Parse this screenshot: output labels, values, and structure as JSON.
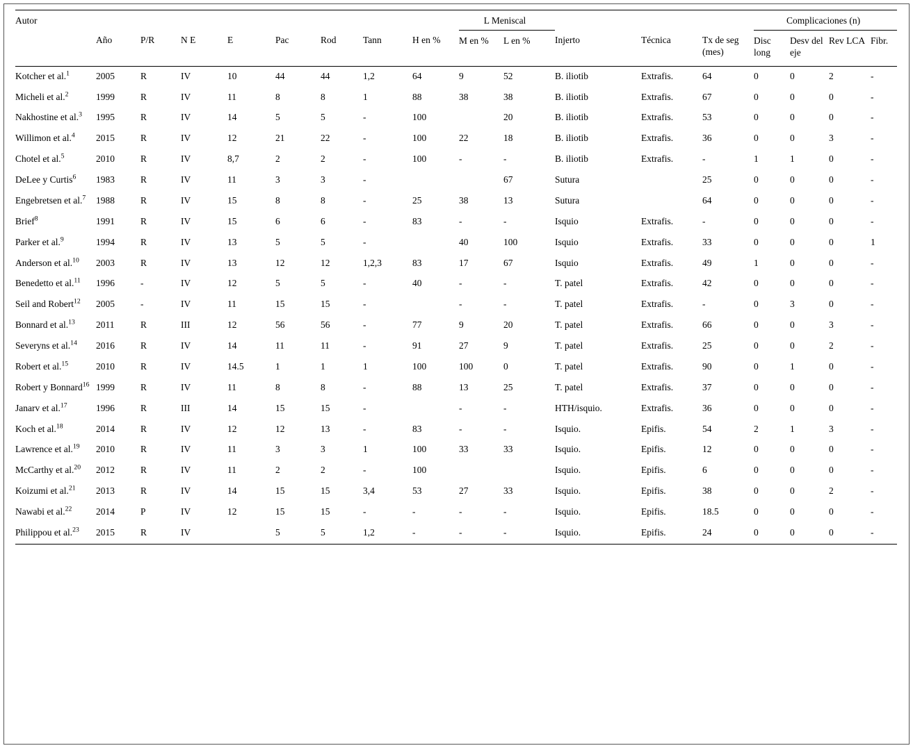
{
  "table": {
    "header": {
      "autor": "Autor",
      "l_meniscal": "L Meniscal",
      "complicaciones": "Complicaciones (n)",
      "cols": [
        "Año",
        "P/R",
        "N E",
        "E",
        "Pac",
        "Rod",
        "Tann",
        "H en %",
        "M en %",
        "L en %",
        "Injerto",
        "Técnica",
        "Tx de seg (mes)",
        "Disc long",
        "Desv del eje",
        "Rev LCA",
        "Fibr."
      ]
    },
    "rows": [
      {
        "autor": "Kotcher et al.",
        "ref": "1",
        "cells": [
          "2005",
          "R",
          "IV",
          "10",
          "44",
          "44",
          "1,2",
          "64",
          "9",
          "52",
          "B. iliotib",
          "Extrafis.",
          "64",
          "0",
          "0",
          "2",
          "-"
        ]
      },
      {
        "autor": "Micheli et al.",
        "ref": "2",
        "cells": [
          "1999",
          "R",
          "IV",
          "11",
          "8",
          "8",
          "1",
          "88",
          "38",
          "38",
          "B. iliotib",
          "Extrafis.",
          "67",
          "0",
          "0",
          "0",
          "-"
        ]
      },
      {
        "autor": "Nakhostine et al.",
        "ref": "3",
        "cells": [
          "1995",
          "R",
          "IV",
          "14",
          "5",
          "5",
          "-",
          "100",
          "",
          "20",
          "B. iliotib",
          "Extrafis.",
          "53",
          "0",
          "0",
          "0",
          "-"
        ]
      },
      {
        "autor": "Willimon et al.",
        "ref": "4",
        "cells": [
          "2015",
          "R",
          "IV",
          "12",
          "21",
          "22",
          "-",
          "100",
          "22",
          "18",
          "B. iliotib",
          "Extrafis.",
          "36",
          "0",
          "0",
          "3",
          "-"
        ]
      },
      {
        "autor": "Chotel et al.",
        "ref": "5",
        "cells": [
          "2010",
          "R",
          "IV",
          "8,7",
          "2",
          "2",
          "-",
          "100",
          "-",
          "-",
          "B. iliotib",
          "Extrafis.",
          "-",
          "1",
          "1",
          "0",
          "-"
        ]
      },
      {
        "autor": "DeLee y Curtis",
        "ref": "6",
        "cells": [
          "1983",
          "R",
          "IV",
          "11",
          "3",
          "3",
          "-",
          "",
          "",
          "67",
          "Sutura",
          "",
          "25",
          "0",
          "0",
          "0",
          "-"
        ]
      },
      {
        "autor": "Engebretsen et al.",
        "ref": "7",
        "cells": [
          "1988",
          "R",
          "IV",
          "15",
          "8",
          "8",
          "-",
          "25",
          "38",
          "13",
          "Sutura",
          "",
          "64",
          "0",
          "0",
          "0",
          "-"
        ]
      },
      {
        "autor": "Brief",
        "ref": "8",
        "cells": [
          "1991",
          "R",
          "IV",
          "15",
          "6",
          "6",
          "-",
          "83",
          "-",
          "-",
          "Isquio",
          "Extrafis.",
          "-",
          "0",
          "0",
          "0",
          "-"
        ]
      },
      {
        "autor": "Parker et al.",
        "ref": "9",
        "cells": [
          "1994",
          "R",
          "IV",
          "13",
          "5",
          "5",
          "-",
          "",
          "40",
          "100",
          "Isquio",
          "Extrafis.",
          "33",
          "0",
          "0",
          "0",
          "1"
        ]
      },
      {
        "autor": "Anderson et al.",
        "ref": "10",
        "cells": [
          "2003",
          "R",
          "IV",
          "13",
          "12",
          "12",
          "1,2,3",
          "83",
          "17",
          "67",
          "Isquio",
          "Extrafis.",
          "49",
          "1",
          "0",
          "0",
          "-"
        ]
      },
      {
        "autor": "Benedetto et al.",
        "ref": "11",
        "cells": [
          "1996",
          "-",
          "IV",
          "12",
          "5",
          "5",
          "-",
          "40",
          "-",
          "-",
          "T. patel",
          "Extrafis.",
          "42",
          "0",
          "0",
          "0",
          "-"
        ]
      },
      {
        "autor": "Seil and Robert",
        "ref": "12",
        "cells": [
          "2005",
          "-",
          "IV",
          "11",
          "15",
          "15",
          "-",
          "",
          "-",
          "-",
          "T. patel",
          "Extrafis.",
          "-",
          "0",
          "3",
          "0",
          "-"
        ]
      },
      {
        "autor": "Bonnard et al.",
        "ref": "13",
        "cells": [
          "2011",
          "R",
          "III",
          "12",
          "56",
          "56",
          "-",
          "77",
          "9",
          "20",
          "T. patel",
          "Extrafis.",
          "66",
          "0",
          "0",
          "3",
          "-"
        ]
      },
      {
        "autor": "Severyns et al.",
        "ref": "14",
        "cells": [
          "2016",
          "R",
          "IV",
          "14",
          "11",
          "11",
          "-",
          "91",
          "27",
          "9",
          "T. patel",
          "Extrafis.",
          "25",
          "0",
          "0",
          "2",
          "-"
        ]
      },
      {
        "autor": "Robert et al.",
        "ref": "15",
        "cells": [
          "2010",
          "R",
          "IV",
          "14.5",
          "1",
          "1",
          "1",
          "100",
          "100",
          "0",
          "T. patel",
          "Extrafis.",
          "90",
          "0",
          "1",
          "0",
          "-"
        ]
      },
      {
        "autor": "Robert y Bonnard",
        "ref": "16",
        "cells": [
          "1999",
          "R",
          "IV",
          "11",
          "8",
          "8",
          "-",
          "88",
          "13",
          "25",
          "T. patel",
          "Extrafis.",
          "37",
          "0",
          "0",
          "0",
          "-"
        ]
      },
      {
        "autor": "Janarv et al.",
        "ref": "17",
        "cells": [
          "1996",
          "R",
          "III",
          "14",
          "15",
          "15",
          "-",
          "",
          "-",
          "-",
          "HTH/isquio.",
          "Extrafis.",
          "36",
          "0",
          "0",
          "0",
          "-"
        ]
      },
      {
        "autor": "Koch et al.",
        "ref": "18",
        "cells": [
          "2014",
          "R",
          "IV",
          "12",
          "12",
          "13",
          "-",
          "83",
          "-",
          "-",
          "Isquio.",
          "Epifis.",
          "54",
          "2",
          "1",
          "3",
          "-"
        ]
      },
      {
        "autor": "Lawrence et al.",
        "ref": "19",
        "cells": [
          "2010",
          "R",
          "IV",
          "11",
          "3",
          "3",
          "1",
          "100",
          "33",
          "33",
          "Isquio.",
          "Epifis.",
          "12",
          "0",
          "0",
          "0",
          "-"
        ]
      },
      {
        "autor": "McCarthy et al.",
        "ref": "20",
        "cells": [
          "2012",
          "R",
          "IV",
          "11",
          "2",
          "2",
          "-",
          "100",
          "",
          "",
          "Isquio.",
          "Epifis.",
          "6",
          "0",
          "0",
          "0",
          "-"
        ]
      },
      {
        "autor": "Koizumi et al.",
        "ref": "21",
        "cells": [
          "2013",
          "R",
          "IV",
          "14",
          "15",
          "15",
          "3,4",
          "53",
          "27",
          "33",
          "Isquio.",
          "Epifis.",
          "38",
          "0",
          "0",
          "2",
          "-"
        ]
      },
      {
        "autor": "Nawabi et al.",
        "ref": "22",
        "cells": [
          "2014",
          "P",
          "IV",
          "12",
          "15",
          "15",
          "-",
          "-",
          "-",
          "-",
          "Isquio.",
          "Epifis.",
          "18.5",
          "0",
          "0",
          "0",
          "-"
        ]
      },
      {
        "autor": "Philippou et al.",
        "ref": "23",
        "cells": [
          "2015",
          "R",
          "IV",
          "",
          "5",
          "5",
          "1,2",
          "-",
          "-",
          "-",
          "Isquio.",
          "Epifis.",
          "24",
          "0",
          "0",
          "0",
          "-"
        ]
      }
    ]
  }
}
